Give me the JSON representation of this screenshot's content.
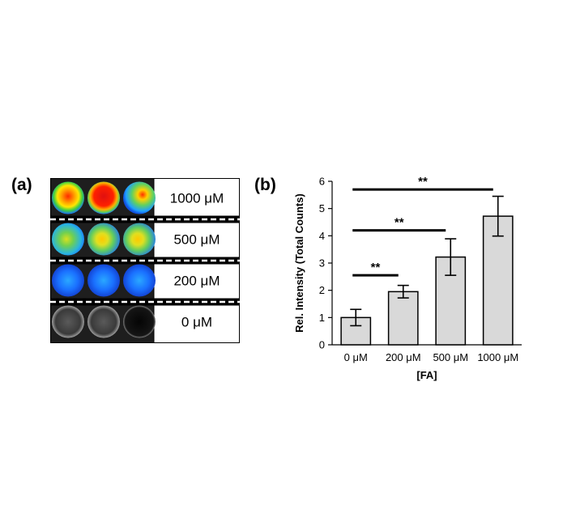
{
  "panel_a": {
    "label": "(a)",
    "rows": [
      {
        "concentration": "1000 μM",
        "wells": [
          "hot",
          "hotter",
          "hot-green"
        ]
      },
      {
        "concentration": "500 μM",
        "wells": [
          "green",
          "green-yellow",
          "green-yellow"
        ]
      },
      {
        "concentration": "200 μM",
        "wells": [
          "blue",
          "blue",
          "blue"
        ]
      },
      {
        "concentration": "0 μM",
        "wells": [
          "gray",
          "gray",
          "dark"
        ]
      }
    ]
  },
  "panel_b": {
    "label": "(b)"
  },
  "chart_data": {
    "type": "bar",
    "categories": [
      "0 μM",
      "200 μM",
      "500 μM",
      "1000 μM"
    ],
    "values": [
      1.0,
      1.95,
      3.22,
      4.72
    ],
    "errors": [
      0.3,
      0.23,
      0.67,
      0.73
    ],
    "xlabel": "[FA]",
    "ylabel": "Rel. Intensity (Total Counts)",
    "ylim": [
      0,
      6
    ],
    "yticks": [
      "0",
      "1",
      "2",
      "3",
      "4",
      "5",
      "6"
    ],
    "grid": false,
    "bar_color": "#d9d9d9",
    "significance": [
      {
        "from": "0 μM",
        "to": "200 μM",
        "label": "**",
        "y": 2.55
      },
      {
        "from": "0 μM",
        "to": "500 μM",
        "label": "**",
        "y": 4.2
      },
      {
        "from": "0 μM",
        "to": "1000 μM",
        "label": "**",
        "y": 5.7
      }
    ]
  }
}
